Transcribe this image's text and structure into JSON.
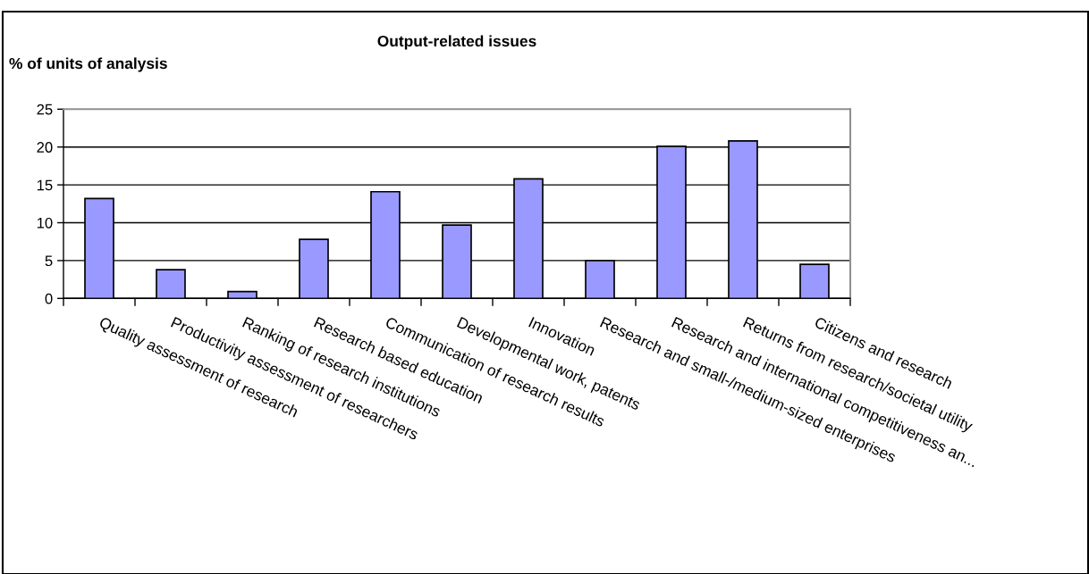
{
  "chart_data": {
    "type": "bar",
    "title": "Output-related issues",
    "ylabel": "% of units of analysis",
    "categories": [
      "Quality assessment of research",
      "Productivity assessment of researchers",
      "Ranking of research institutions",
      "Research based education",
      "Communication of research results",
      "Developmental work, patents",
      "Innovation",
      "Research and small-/medium-sized enterprises",
      "Research and international competitiveness an...",
      "Returns from research/societal utility",
      "Citizens and research"
    ],
    "values": [
      13.2,
      3.8,
      0.9,
      7.8,
      14.1,
      9.7,
      15.8,
      5.0,
      20.1,
      20.8,
      4.5
    ],
    "color": "#9999ff",
    "ylim": [
      0,
      25
    ],
    "yticks": [
      0,
      5,
      10,
      15,
      20,
      25
    ],
    "grid": "y"
  }
}
